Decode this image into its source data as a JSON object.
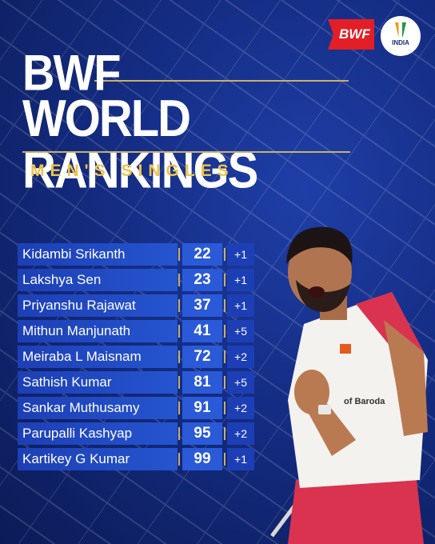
{
  "header": {
    "title_line1": "BWF",
    "title_line2": "WORLD RANKINGS",
    "subtitle": "MEN'S SINGLES",
    "bwf_logo_text": "BWF",
    "badminton_india_text": "INDIA"
  },
  "colors": {
    "background": "#142c82",
    "accent_gold": "#f0c34a",
    "row_blue": "#1d3fb5",
    "bwf_red": "#e21f26"
  },
  "rankings": [
    {
      "name": "Kidambi Srikanth",
      "rank": "22",
      "change": "+1"
    },
    {
      "name": "Lakshya Sen",
      "rank": "23",
      "change": "+1"
    },
    {
      "name": "Priyanshu Rajawat",
      "rank": "37",
      "change": "+1"
    },
    {
      "name": "Mithun Manjunath",
      "rank": "41",
      "change": "+5"
    },
    {
      "name": "Meiraba L Maisnam",
      "rank": "72",
      "change": "+2"
    },
    {
      "name": "Sathish Kumar",
      "rank": "81",
      "change": "+5"
    },
    {
      "name": "Sankar Muthusamy",
      "rank": "91",
      "change": "+2"
    },
    {
      "name": "Parupalli Kashyap",
      "rank": "95",
      "change": "+2"
    },
    {
      "name": "Kartikey G Kumar",
      "rank": "99",
      "change": "+1"
    }
  ],
  "player_shirt_text": "of Baroda"
}
